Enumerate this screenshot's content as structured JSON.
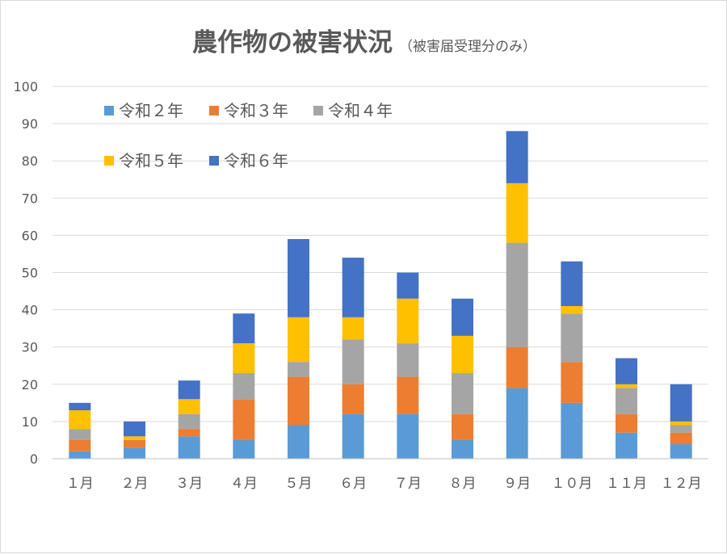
{
  "chart_data": {
    "type": "bar",
    "stacked": true,
    "title": "農作物の被害状況",
    "subtitle": "（被害届受理分のみ）",
    "categories": [
      "１月",
      "２月",
      "３月",
      "４月",
      "５月",
      "６月",
      "７月",
      "８月",
      "９月",
      "１０月",
      "１１月",
      "１２月"
    ],
    "series": [
      {
        "name": "令和２年",
        "color": "#5B9BD5",
        "values": [
          2,
          3,
          6,
          5,
          9,
          12,
          12,
          5,
          19,
          15,
          7,
          4
        ]
      },
      {
        "name": "令和３年",
        "color": "#ED7D31",
        "values": [
          3,
          2,
          2,
          11,
          13,
          8,
          10,
          7,
          11,
          11,
          5,
          3
        ]
      },
      {
        "name": "令和４年",
        "color": "#A5A5A5",
        "values": [
          3,
          0,
          4,
          7,
          4,
          12,
          9,
          11,
          28,
          13,
          7,
          2
        ]
      },
      {
        "name": "令和５年",
        "color": "#FFC000",
        "values": [
          5,
          1,
          4,
          8,
          12,
          6,
          12,
          10,
          16,
          2,
          1,
          1
        ]
      },
      {
        "name": "令和６年",
        "color": "#4472C4",
        "values": [
          2,
          4,
          5,
          8,
          21,
          16,
          7,
          10,
          14,
          12,
          7,
          10
        ]
      }
    ],
    "xlabel": "",
    "ylabel": "",
    "ylim": [
      0,
      100
    ],
    "yticks": [
      "0",
      "10",
      "20",
      "30",
      "40",
      "50",
      "60",
      "70",
      "80",
      "90",
      "100"
    ],
    "grid": true,
    "legend_position": "top-left"
  }
}
